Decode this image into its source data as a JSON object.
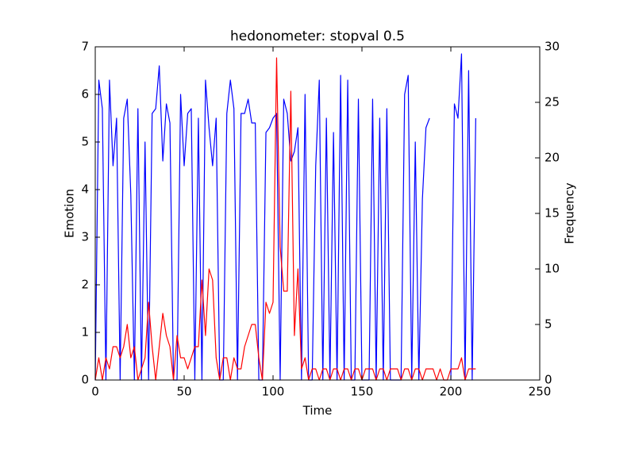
{
  "chart_data": {
    "type": "line",
    "title": "hedonometer: stopval 0.5",
    "xlabel": "Time",
    "ylabel": "Emotion",
    "y2label": "Frequency",
    "x": [
      0,
      2,
      4,
      6,
      8,
      10,
      12,
      14,
      16,
      18,
      20,
      22,
      24,
      26,
      28,
      30,
      32,
      34,
      36,
      38,
      40,
      42,
      44,
      46,
      48,
      50,
      52,
      54,
      56,
      58,
      60,
      62,
      64,
      66,
      68,
      70,
      72,
      74,
      76,
      78,
      80,
      82,
      84,
      86,
      88,
      90,
      92,
      94,
      96,
      98,
      100,
      102,
      104,
      106,
      108,
      110,
      112,
      114,
      116,
      118,
      120,
      122,
      124,
      126,
      128,
      130,
      132,
      134,
      136,
      138,
      140,
      142,
      144,
      146,
      148,
      150,
      152,
      154,
      156,
      158,
      160,
      162,
      164,
      166,
      168,
      170,
      172,
      174,
      176,
      178,
      180,
      182,
      184,
      186,
      188,
      190,
      192,
      194,
      196,
      198,
      200,
      202,
      204,
      206,
      208,
      210,
      212,
      214
    ],
    "xlim": [
      0,
      250
    ],
    "xticks": [
      0,
      50,
      100,
      150,
      200,
      250
    ],
    "ylim": [
      0,
      7
    ],
    "yticks": [
      0,
      1,
      2,
      3,
      4,
      5,
      6,
      7
    ],
    "y2lim": [
      0,
      30
    ],
    "y2ticks": [
      0,
      5,
      10,
      15,
      20,
      25,
      30
    ],
    "series": [
      {
        "color": "#0000ff",
        "values": [
          0,
          6.3,
          5.7,
          0,
          6.3,
          4.5,
          5.5,
          0,
          5.5,
          5.9,
          3.9,
          0,
          5.7,
          0,
          5.0,
          0,
          5.6,
          5.7,
          6.6,
          4.6,
          5.8,
          5.4,
          0,
          0,
          6.0,
          4.5,
          5.6,
          5.7,
          0,
          5.5,
          0,
          6.3,
          5.3,
          4.5,
          5.5,
          0,
          0,
          5.6,
          6.3,
          5.7,
          0,
          5.6,
          5.6,
          5.9,
          5.4,
          5.4,
          0,
          0,
          5.2,
          5.3,
          5.5,
          5.6,
          0,
          5.9,
          5.6,
          4.6,
          4.8,
          5.3,
          0,
          6.0,
          0,
          0,
          4.5,
          6.3,
          0,
          5.5,
          0,
          5.2,
          0,
          6.4,
          0,
          6.3,
          0,
          0,
          5.9,
          0,
          0,
          0,
          5.9,
          0,
          5.5,
          0,
          5.7,
          0,
          0,
          0,
          0,
          6.0,
          6.4,
          0,
          5.0,
          0,
          3.8,
          5.3,
          5.5,
          null,
          null,
          null,
          null,
          null,
          0,
          5.8,
          5.5,
          6.85,
          0,
          6.5,
          0,
          5.5
        ]
      },
      {
        "color": "#ff0000",
        "axis": "y2",
        "values": [
          0,
          2,
          0,
          2,
          1,
          3,
          3,
          2,
          3,
          5,
          2,
          3,
          0,
          1,
          2,
          7,
          3,
          0,
          3,
          6,
          4,
          3,
          0,
          4,
          2,
          2,
          1,
          2,
          3,
          3,
          9,
          4,
          10,
          9,
          2,
          0,
          2,
          2,
          0,
          2,
          1,
          1,
          3,
          4,
          5,
          5,
          2,
          0,
          7,
          6,
          7,
          29,
          12,
          8,
          8,
          26,
          4,
          10,
          1,
          2,
          0,
          1,
          1,
          0,
          1,
          1,
          0,
          1,
          1,
          0,
          1,
          1,
          0,
          1,
          1,
          0,
          1,
          1,
          1,
          0,
          1,
          1,
          0,
          1,
          1,
          1,
          0,
          1,
          1,
          0,
          1,
          1,
          0,
          1,
          1,
          1,
          0,
          1,
          0,
          0,
          1,
          1,
          1,
          2,
          0,
          1,
          1,
          1
        ]
      }
    ]
  }
}
